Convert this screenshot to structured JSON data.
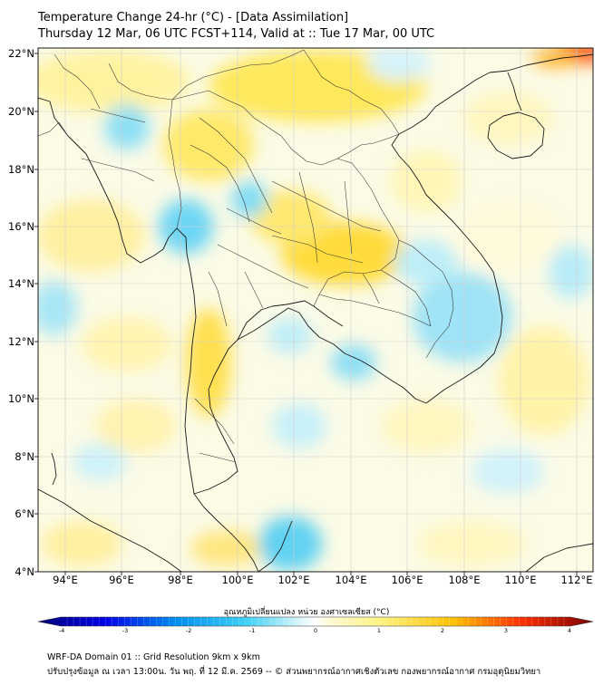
{
  "title_line1": "Temperature Change 24-hr (°C) - [Data Assimilation]",
  "title_line2": "Thursday 12 Mar, 06 UTC FCST+114, Valid at :: Tue 17 Mar, 00 UTC",
  "lat_labels": [
    "22°N",
    "20°N",
    "18°N",
    "16°N",
    "14°N",
    "12°N",
    "10°N",
    "8°N",
    "6°N",
    "4°N"
  ],
  "lon_labels": [
    "94°E",
    "96°E",
    "98°E",
    "100°E",
    "102°E",
    "104°E",
    "106°E",
    "108°E",
    "110°E",
    "112°E"
  ],
  "colorbar": {
    "label": "อุณหภูมิเปลี่ยนแปลง หน่วย องศาเซลเซียส (°C)",
    "ticks": [
      "-4",
      "-3",
      "-2",
      "-1",
      "0",
      "1",
      "2",
      "3",
      "4"
    ],
    "min": -4,
    "max": 4
  },
  "footer_line1": "WRF-DA Domain 01 :: Grid Resolution 9km x 9km",
  "footer_line2": "ปรับปรุงข้อมูล ณ เวลา 13:00น. วัน พฤ. ที่ 12 มี.ค. 2569 -- © ส่วนพยากรณ์อากาศเชิงตัวเลข กองพยากรณ์อากาศ กรมอุตุนิยมวิทยา"
}
